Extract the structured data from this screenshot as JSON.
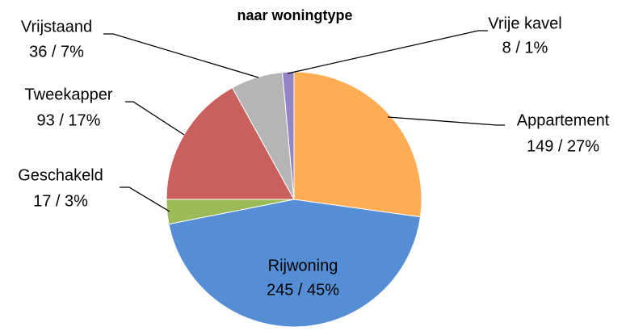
{
  "chart_data": {
    "type": "pie",
    "title": "naar woningtype",
    "categories": [
      "Appartement",
      "Rijwoning",
      "Geschakeld",
      "Tweekapper",
      "Vrijstaand",
      "Vrije kavel"
    ],
    "values": [
      149,
      245,
      17,
      93,
      36,
      8
    ],
    "value_labels": [
      "149 / 27%",
      "245 / 45%",
      "17 / 3%",
      "93 / 17%",
      "36 / 7%",
      "8 / 1%"
    ],
    "colors": [
      "#ffad55",
      "#558ed5",
      "#9bbb59",
      "#c9605d",
      "#b5b5b5",
      "#9384c6"
    ]
  }
}
